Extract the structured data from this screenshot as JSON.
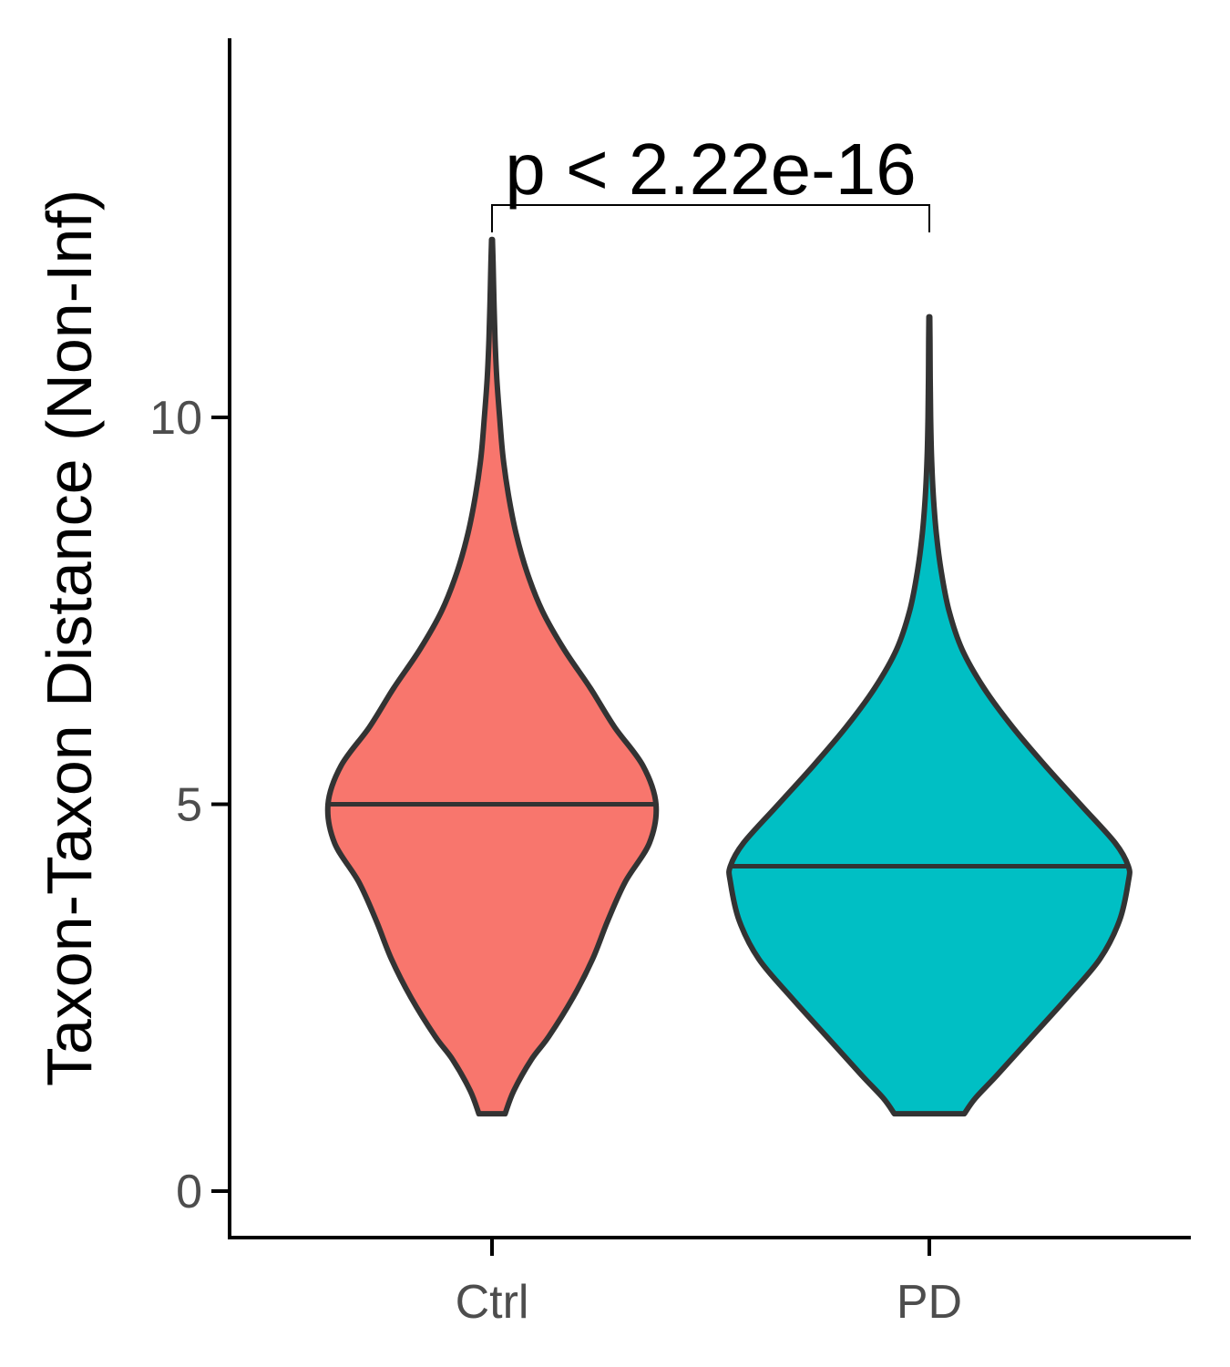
{
  "chart_data": {
    "type": "violin",
    "title": "",
    "xlabel": "",
    "ylabel": "Taxon-Taxon Distance (Non-Inf)",
    "categories": [
      "Ctrl",
      "PD"
    ],
    "ylim": [
      -0.6,
      14.9
    ],
    "yticks": [
      0,
      5,
      10
    ],
    "series": [
      {
        "name": "Ctrl",
        "color": "#F8766D",
        "median": 5.0,
        "min": 1.0,
        "max": 12.3,
        "density": [
          [
            1.0,
            0.06
          ],
          [
            1.3,
            0.1
          ],
          [
            1.7,
            0.18
          ],
          [
            2.0,
            0.26
          ],
          [
            2.5,
            0.37
          ],
          [
            3.0,
            0.46
          ],
          [
            3.5,
            0.53
          ],
          [
            4.0,
            0.61
          ],
          [
            4.5,
            0.72
          ],
          [
            5.0,
            0.75
          ],
          [
            5.5,
            0.69
          ],
          [
            6.0,
            0.56
          ],
          [
            6.5,
            0.45
          ],
          [
            7.0,
            0.33
          ],
          [
            7.5,
            0.23
          ],
          [
            8.0,
            0.16
          ],
          [
            8.5,
            0.11
          ],
          [
            9.0,
            0.075
          ],
          [
            9.5,
            0.05
          ],
          [
            10.0,
            0.035
          ],
          [
            10.5,
            0.022
          ],
          [
            11.0,
            0.014
          ],
          [
            11.5,
            0.009
          ],
          [
            12.0,
            0.005
          ],
          [
            12.3,
            0.002
          ]
        ]
      },
      {
        "name": "PD",
        "color": "#00BFC4",
        "median": 4.2,
        "min": 1.0,
        "max": 11.3,
        "density": [
          [
            1.0,
            0.16
          ],
          [
            1.2,
            0.21
          ],
          [
            1.5,
            0.31
          ],
          [
            2.0,
            0.47
          ],
          [
            2.5,
            0.63
          ],
          [
            3.0,
            0.78
          ],
          [
            3.5,
            0.87
          ],
          [
            4.0,
            0.91
          ],
          [
            4.2,
            0.91
          ],
          [
            4.5,
            0.85
          ],
          [
            5.0,
            0.69
          ],
          [
            5.5,
            0.53
          ],
          [
            6.0,
            0.38
          ],
          [
            6.5,
            0.25
          ],
          [
            7.0,
            0.15
          ],
          [
            7.5,
            0.09
          ],
          [
            8.0,
            0.055
          ],
          [
            8.5,
            0.032
          ],
          [
            9.0,
            0.018
          ],
          [
            9.5,
            0.01
          ],
          [
            10.0,
            0.006
          ],
          [
            10.5,
            0.004
          ],
          [
            11.0,
            0.003
          ],
          [
            11.3,
            0.002
          ]
        ]
      }
    ],
    "annotation": {
      "text": "p < 2.22e-16",
      "between": [
        "Ctrl",
        "PD"
      ]
    },
    "grid": false,
    "legend": "none"
  }
}
